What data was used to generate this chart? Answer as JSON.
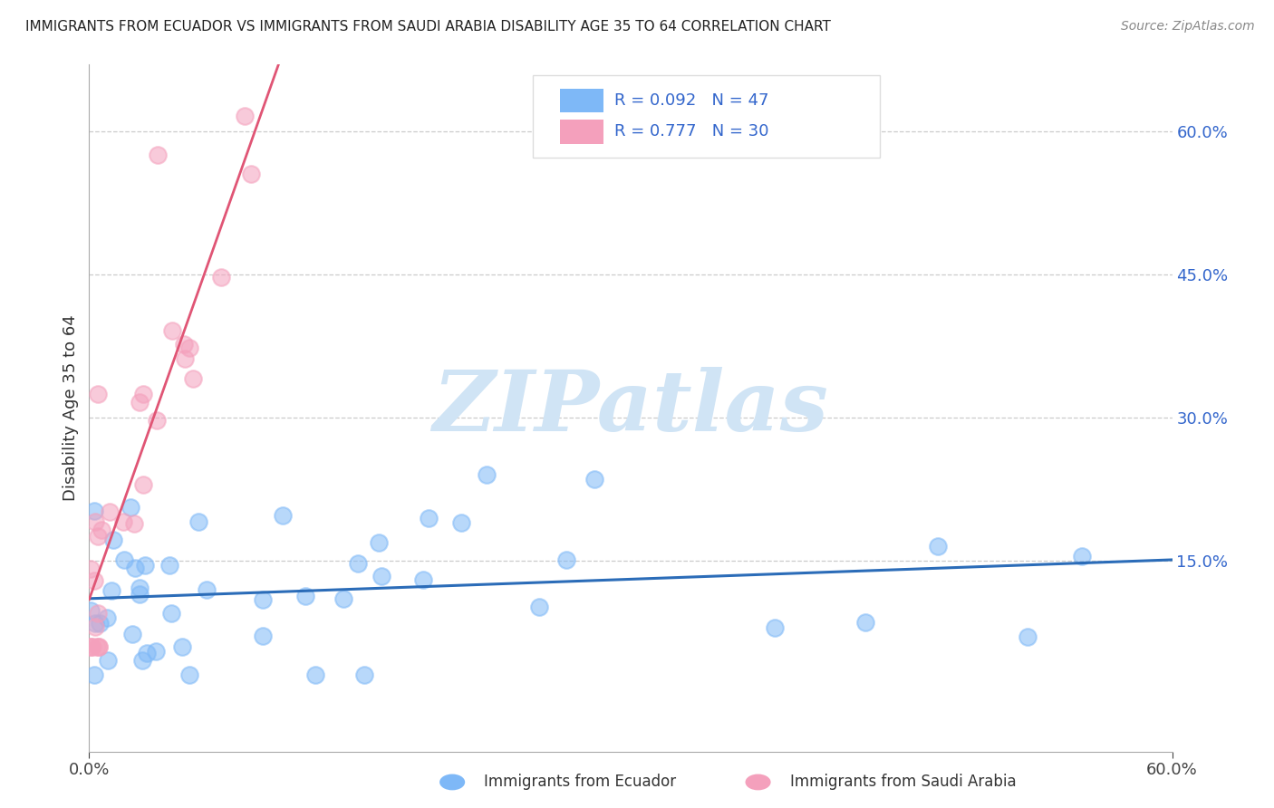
{
  "title": "IMMIGRANTS FROM ECUADOR VS IMMIGRANTS FROM SAUDI ARABIA DISABILITY AGE 35 TO 64 CORRELATION CHART",
  "source": "Source: ZipAtlas.com",
  "ylabel": "Disability Age 35 to 64",
  "ytick_labels": [
    "60.0%",
    "45.0%",
    "30.0%",
    "15.0%"
  ],
  "ytick_values": [
    0.6,
    0.45,
    0.3,
    0.15
  ],
  "xlim": [
    0.0,
    0.6
  ],
  "ylim": [
    -0.05,
    0.67
  ],
  "legend_label1": "Immigrants from Ecuador",
  "legend_label2": "Immigrants from Saudi Arabia",
  "r_ecuador": 0.092,
  "n_ecuador": 47,
  "r_saudi": 0.777,
  "n_saudi": 30,
  "color_ecuador": "#7eb8f7",
  "color_saudi": "#f4a0bc",
  "line_color_ecuador": "#2b6cb8",
  "line_color_saudi": "#e05575",
  "text_color_blue": "#3366cc",
  "watermark_color": "#d0e4f5",
  "background_color": "#ffffff"
}
